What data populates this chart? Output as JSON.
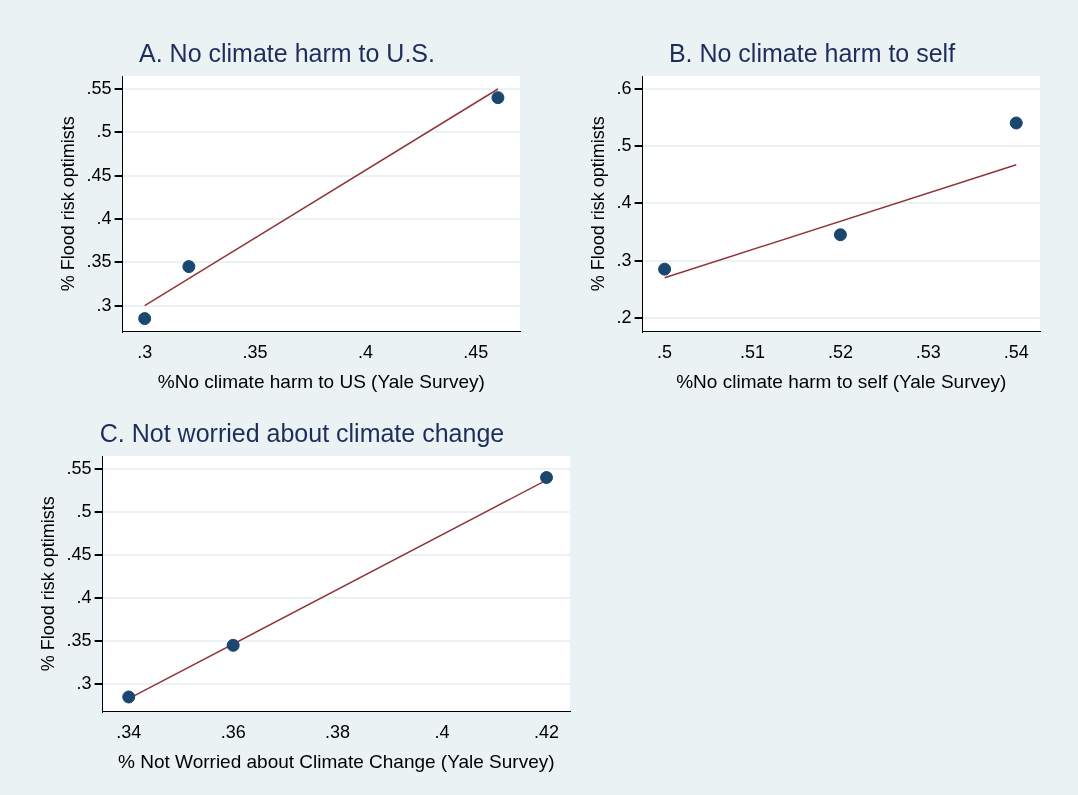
{
  "chart_data": [
    {
      "type": "scatter",
      "title": "A. No climate harm to U.S.",
      "xlabel": "%No climate harm to US (Yale Survey)",
      "ylabel": "% Flood risk optimists",
      "xlim": [
        0.29,
        0.47
      ],
      "ylim": [
        0.27,
        0.565
      ],
      "xticks": [
        {
          "value": 0.3,
          "label": ".3"
        },
        {
          "value": 0.35,
          "label": ".35"
        },
        {
          "value": 0.4,
          "label": ".4"
        },
        {
          "value": 0.45,
          "label": ".45"
        }
      ],
      "yticks": [
        {
          "value": 0.3,
          "label": ".3"
        },
        {
          "value": 0.35,
          "label": ".35"
        },
        {
          "value": 0.4,
          "label": ".4"
        },
        {
          "value": 0.45,
          "label": ".45"
        },
        {
          "value": 0.5,
          "label": ".5"
        },
        {
          "value": 0.55,
          "label": ".55"
        }
      ],
      "grid": "y",
      "legend": false,
      "marker": "circle",
      "series": [
        {
          "type": "scatter",
          "color": "#1a476f",
          "x": [
            0.3,
            0.32,
            0.46
          ],
          "values": [
            0.285,
            0.345,
            0.54
          ]
        },
        {
          "type": "line",
          "color": "#90353b",
          "marker": "none",
          "x": [
            0.3,
            0.46
          ],
          "values": [
            0.3,
            0.55
          ]
        }
      ]
    },
    {
      "type": "scatter",
      "title": "B. No climate harm to self",
      "xlabel": "%No climate harm to self (Yale Survey)",
      "ylabel": "% Flood risk optimists",
      "xlim": [
        0.4975,
        0.5427
      ],
      "ylim": [
        0.176,
        0.622
      ],
      "xticks": [
        {
          "value": 0.5,
          "label": ".5"
        },
        {
          "value": 0.51,
          "label": ".51"
        },
        {
          "value": 0.52,
          "label": ".52"
        },
        {
          "value": 0.53,
          "label": ".53"
        },
        {
          "value": 0.54,
          "label": ".54"
        }
      ],
      "yticks": [
        {
          "value": 0.2,
          "label": ".2"
        },
        {
          "value": 0.3,
          "label": ".3"
        },
        {
          "value": 0.4,
          "label": ".4"
        },
        {
          "value": 0.5,
          "label": ".5"
        },
        {
          "value": 0.6,
          "label": ".6"
        }
      ],
      "grid": "y",
      "legend": false,
      "marker": "circle",
      "series": [
        {
          "type": "scatter",
          "color": "#1a476f",
          "x": [
            0.5,
            0.52,
            0.54
          ],
          "values": [
            0.285,
            0.345,
            0.54
          ]
        },
        {
          "type": "line",
          "color": "#90353b",
          "marker": "none",
          "x": [
            0.5,
            0.54
          ],
          "values": [
            0.27,
            0.467
          ]
        }
      ]
    },
    {
      "type": "scatter",
      "title": "C. Not worried about climate change",
      "xlabel": "% Not Worried about Climate Change (Yale Survey)",
      "ylabel": "% Flood risk optimists",
      "xlim": [
        0.335,
        0.4245
      ],
      "ylim": [
        0.268,
        0.565
      ],
      "xticks": [
        {
          "value": 0.34,
          "label": ".34"
        },
        {
          "value": 0.36,
          "label": ".36"
        },
        {
          "value": 0.38,
          "label": ".38"
        },
        {
          "value": 0.4,
          "label": ".4"
        },
        {
          "value": 0.42,
          "label": ".42"
        }
      ],
      "yticks": [
        {
          "value": 0.3,
          "label": ".3"
        },
        {
          "value": 0.35,
          "label": ".35"
        },
        {
          "value": 0.4,
          "label": ".4"
        },
        {
          "value": 0.45,
          "label": ".45"
        },
        {
          "value": 0.5,
          "label": ".5"
        },
        {
          "value": 0.55,
          "label": ".55"
        }
      ],
      "grid": "y",
      "legend": false,
      "marker": "circle",
      "series": [
        {
          "type": "scatter",
          "color": "#1a476f",
          "x": [
            0.34,
            0.36,
            0.42
          ],
          "values": [
            0.285,
            0.345,
            0.54
          ]
        },
        {
          "type": "line",
          "color": "#90353b",
          "marker": "none",
          "x": [
            0.34,
            0.42
          ],
          "values": [
            0.283,
            0.537
          ]
        }
      ]
    }
  ]
}
